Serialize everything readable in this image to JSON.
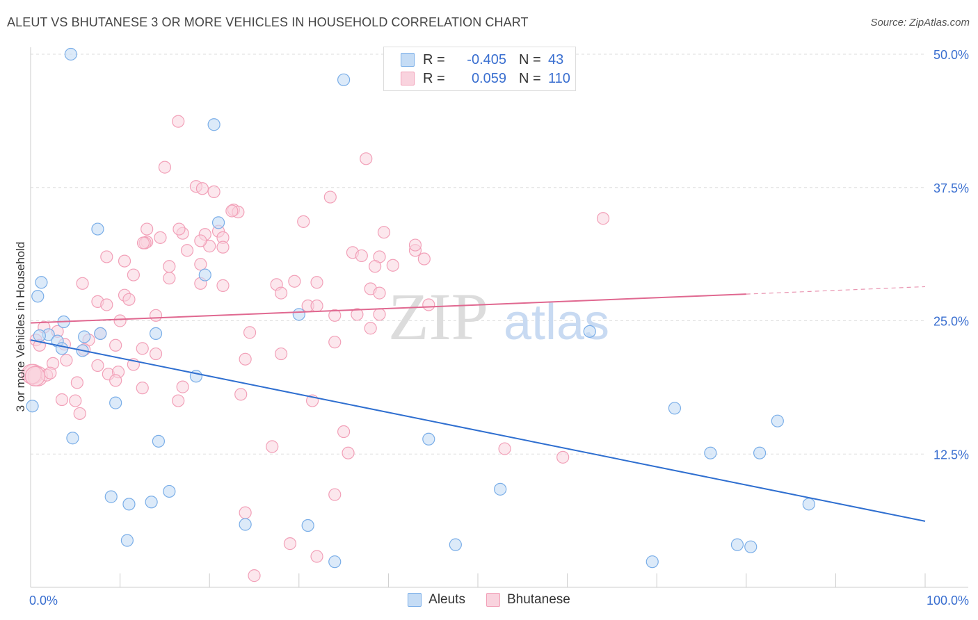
{
  "title": "ALEUT VS BHUTANESE 3 OR MORE VEHICLES IN HOUSEHOLD CORRELATION CHART",
  "source": "Source: ZipAtlas.com",
  "colors": {
    "aleut": "#7aaee8",
    "aleut_fill": "#c5dcf5",
    "bhutanese": "#f2a0b8",
    "bhutanese_fill": "#f9d3de",
    "aleut_line": "#2f6fd0",
    "bhutanese_line": "#e06890",
    "tick": "#3a6fd0"
  },
  "legend": {
    "r_label": "R =",
    "n_label": "N =",
    "aleut": {
      "r": "-0.405",
      "n": "43"
    },
    "bhutanese": {
      "r": "0.059",
      "n": "110"
    }
  },
  "bottom_legend": {
    "aleut": "Aleuts",
    "bhutanese": "Bhutanese"
  },
  "watermark": {
    "zip": "ZIP",
    "atlas": "atlas"
  },
  "chart_data": {
    "type": "scatter",
    "title": "ALEUT VS BHUTANESE 3 OR MORE VEHICLES IN HOUSEHOLD CORRELATION CHART",
    "xlabel": "",
    "ylabel": "3 or more Vehicles in Household",
    "xlim": [
      0,
      100
    ],
    "ylim": [
      0,
      50
    ],
    "x_tick_labels": [
      "0.0%",
      "100.0%"
    ],
    "y_ticks": [
      12.5,
      25.0,
      37.5,
      50.0
    ],
    "y_tick_labels": [
      "12.5%",
      "25.0%",
      "37.5%",
      "50.0%"
    ],
    "grid": true,
    "series": [
      {
        "name": "Aleuts",
        "points": [
          [
            4.5,
            50.0
          ],
          [
            35.0,
            47.6
          ],
          [
            20.5,
            43.4
          ],
          [
            7.5,
            33.6
          ],
          [
            21.0,
            34.2
          ],
          [
            19.5,
            29.3
          ],
          [
            1.2,
            28.6
          ],
          [
            0.8,
            27.3
          ],
          [
            30.0,
            25.6
          ],
          [
            3.7,
            24.9
          ],
          [
            14.0,
            23.8
          ],
          [
            62.5,
            24.0
          ],
          [
            2.0,
            23.7
          ],
          [
            6.0,
            23.5
          ],
          [
            7.8,
            23.8
          ],
          [
            3.0,
            23.1
          ],
          [
            3.5,
            22.4
          ],
          [
            5.8,
            22.2
          ],
          [
            18.5,
            19.8
          ],
          [
            0.2,
            17.0
          ],
          [
            9.5,
            17.3
          ],
          [
            72.0,
            16.8
          ],
          [
            83.5,
            15.6
          ],
          [
            4.7,
            14.0
          ],
          [
            14.3,
            13.7
          ],
          [
            44.5,
            13.9
          ],
          [
            76.0,
            12.6
          ],
          [
            81.5,
            12.6
          ],
          [
            9.0,
            8.5
          ],
          [
            11.0,
            7.8
          ],
          [
            13.5,
            8.0
          ],
          [
            15.5,
            9.0
          ],
          [
            52.5,
            9.2
          ],
          [
            87.0,
            7.8
          ],
          [
            24.0,
            5.9
          ],
          [
            31.0,
            5.8
          ],
          [
            10.8,
            4.4
          ],
          [
            47.5,
            4.0
          ],
          [
            79.0,
            4.0
          ],
          [
            80.5,
            3.8
          ],
          [
            69.5,
            2.4
          ],
          [
            34.0,
            2.4
          ],
          [
            1.0,
            23.6
          ]
        ],
        "trend": {
          "x": [
            0,
            100
          ],
          "y": [
            23.2,
            6.2
          ]
        }
      },
      {
        "name": "Bhutanese",
        "points": [
          [
            16.5,
            43.7
          ],
          [
            37.5,
            40.2
          ],
          [
            15.0,
            39.4
          ],
          [
            18.5,
            37.6
          ],
          [
            19.2,
            37.4
          ],
          [
            20.5,
            37.1
          ],
          [
            33.5,
            36.6
          ],
          [
            22.7,
            35.4
          ],
          [
            23.2,
            35.2
          ],
          [
            64.0,
            34.6
          ],
          [
            30.5,
            34.3
          ],
          [
            13.0,
            33.6
          ],
          [
            21.0,
            33.4
          ],
          [
            19.5,
            33.1
          ],
          [
            14.5,
            32.8
          ],
          [
            17.0,
            33.2
          ],
          [
            21.5,
            32.8
          ],
          [
            39.5,
            33.3
          ],
          [
            13.0,
            32.4
          ],
          [
            12.8,
            32.3
          ],
          [
            20.0,
            32.0
          ],
          [
            19.0,
            32.5
          ],
          [
            17.5,
            31.6
          ],
          [
            21.5,
            31.9
          ],
          [
            36.0,
            31.4
          ],
          [
            43.0,
            31.6
          ],
          [
            44.0,
            30.8
          ],
          [
            8.5,
            31.0
          ],
          [
            10.5,
            30.6
          ],
          [
            37.0,
            31.1
          ],
          [
            39.0,
            31.0
          ],
          [
            38.5,
            30.1
          ],
          [
            15.5,
            30.1
          ],
          [
            19.0,
            30.3
          ],
          [
            40.5,
            30.2
          ],
          [
            11.5,
            29.3
          ],
          [
            15.5,
            29.0
          ],
          [
            29.5,
            28.7
          ],
          [
            32.0,
            28.6
          ],
          [
            5.8,
            28.5
          ],
          [
            21.5,
            28.3
          ],
          [
            27.5,
            28.4
          ],
          [
            19.0,
            28.5
          ],
          [
            38.0,
            28.0
          ],
          [
            28.0,
            27.6
          ],
          [
            10.5,
            27.4
          ],
          [
            39.0,
            27.6
          ],
          [
            11.0,
            27.0
          ],
          [
            7.5,
            26.8
          ],
          [
            8.5,
            26.5
          ],
          [
            31.0,
            26.4
          ],
          [
            32.0,
            26.4
          ],
          [
            44.5,
            26.5
          ],
          [
            14.0,
            25.5
          ],
          [
            34.0,
            25.5
          ],
          [
            36.5,
            25.6
          ],
          [
            39.0,
            25.6
          ],
          [
            10.0,
            25.0
          ],
          [
            38.0,
            24.3
          ],
          [
            1.5,
            24.4
          ],
          [
            3.0,
            24.0
          ],
          [
            7.8,
            23.8
          ],
          [
            6.5,
            23.2
          ],
          [
            0.6,
            23.2
          ],
          [
            24.5,
            23.9
          ],
          [
            34.0,
            23.0
          ],
          [
            1.0,
            22.7
          ],
          [
            3.8,
            22.8
          ],
          [
            9.5,
            22.7
          ],
          [
            12.5,
            22.4
          ],
          [
            28.0,
            21.9
          ],
          [
            6.0,
            22.3
          ],
          [
            14.0,
            21.9
          ],
          [
            24.0,
            21.4
          ],
          [
            2.5,
            21.0
          ],
          [
            7.5,
            20.8
          ],
          [
            11.5,
            20.9
          ],
          [
            8.7,
            20.0
          ],
          [
            0.3,
            20.0
          ],
          [
            0.8,
            19.8
          ],
          [
            1.8,
            19.9
          ],
          [
            2.2,
            20.1
          ],
          [
            9.8,
            20.2
          ],
          [
            5.2,
            19.2
          ],
          [
            9.5,
            19.4
          ],
          [
            12.5,
            18.7
          ],
          [
            17.0,
            18.8
          ],
          [
            23.5,
            18.1
          ],
          [
            3.5,
            17.6
          ],
          [
            5.0,
            17.5
          ],
          [
            16.5,
            17.5
          ],
          [
            31.5,
            17.5
          ],
          [
            5.5,
            16.3
          ],
          [
            35.0,
            14.6
          ],
          [
            27.0,
            13.2
          ],
          [
            53.0,
            13.0
          ],
          [
            35.5,
            12.6
          ],
          [
            59.5,
            12.2
          ],
          [
            34.0,
            8.7
          ],
          [
            24.0,
            7.0
          ],
          [
            29.0,
            4.1
          ],
          [
            32.0,
            2.9
          ],
          [
            25.0,
            1.1
          ],
          [
            0.1,
            20.0
          ],
          [
            0.5,
            19.8
          ],
          [
            22.5,
            35.3
          ],
          [
            16.6,
            33.6
          ],
          [
            12.6,
            32.3
          ],
          [
            43.0,
            32.1
          ],
          [
            4.0,
            21.3
          ]
        ],
        "trend": {
          "x": [
            0,
            80
          ],
          "y": [
            24.8,
            27.5
          ]
        },
        "trend_dashed": {
          "x": [
            80,
            100
          ],
          "y": [
            27.5,
            28.2
          ]
        }
      }
    ]
  }
}
